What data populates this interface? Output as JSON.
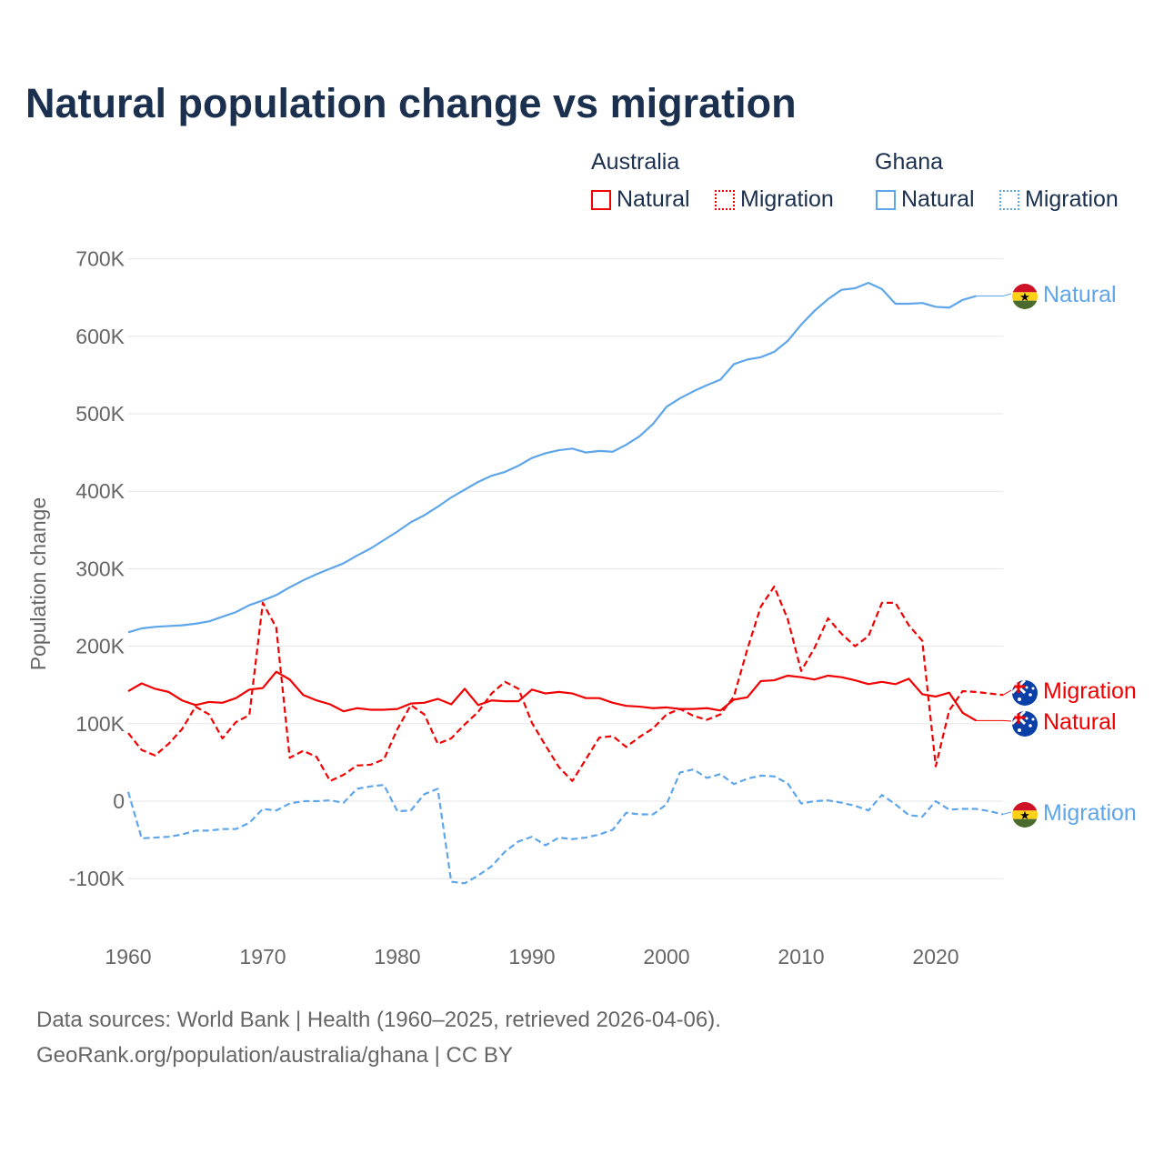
{
  "title": "Natural population change vs migration",
  "legend": {
    "groups": [
      {
        "name": "Australia",
        "items": [
          {
            "label": "Natural",
            "style": "solid"
          },
          {
            "label": "Migration",
            "style": "dotted"
          }
        ]
      },
      {
        "name": "Ghana",
        "items": [
          {
            "label": "Natural",
            "style": "solid"
          },
          {
            "label": "Migration",
            "style": "dotted"
          }
        ]
      }
    ]
  },
  "colors": {
    "australia": "#f00000",
    "ghana": "#5ea5ea"
  },
  "footer": {
    "line1": "Data sources: World Bank | Health (1960–2025, retrieved 2026-04-06).",
    "line2": "GeoRank.org/population/australia/ghana | CC BY"
  },
  "chart_data": {
    "type": "line",
    "title": "Natural population change vs migration",
    "xlabel": "",
    "ylabel": "Population change",
    "xlim": [
      1960,
      2025
    ],
    "ylim": [
      -100000,
      700000
    ],
    "x_ticks": [
      "1960",
      "1970",
      "1980",
      "1990",
      "2000",
      "2010",
      "2020"
    ],
    "y_ticks": [
      {
        "value": 700000,
        "label": "700K"
      },
      {
        "value": 600000,
        "label": "600K"
      },
      {
        "value": 500000,
        "label": "500K"
      },
      {
        "value": 400000,
        "label": "400K"
      },
      {
        "value": 300000,
        "label": "300K"
      },
      {
        "value": 200000,
        "label": "200K"
      },
      {
        "value": 100000,
        "label": "100K"
      },
      {
        "value": 0,
        "label": "0"
      },
      {
        "value": -100000,
        "label": "-100K"
      }
    ],
    "grid": true,
    "legend_position": "top-right",
    "start_year": 1960,
    "series": [
      {
        "name": "Ghana Natural",
        "country": "ghana",
        "dash": false,
        "end_label": "Natural",
        "flag": "ghana",
        "values_k": [
          218,
          223,
          225,
          226,
          227,
          229,
          232,
          238,
          244,
          253,
          259,
          266,
          276,
          285,
          293,
          300,
          307,
          317,
          326,
          337,
          348,
          360,
          369,
          380,
          392,
          402,
          412,
          420,
          425,
          433,
          443,
          449,
          453,
          455,
          450,
          452,
          451,
          460,
          471,
          487,
          509,
          520,
          529,
          537,
          544,
          564,
          570,
          573,
          580,
          594,
          615,
          633,
          648,
          660,
          662,
          669,
          661,
          642,
          642,
          643,
          638,
          637,
          647,
          652
        ]
      },
      {
        "name": "Ghana Migration",
        "country": "ghana",
        "dash": true,
        "end_label": "Migration",
        "flag": "ghana",
        "values_k": [
          12,
          -48,
          -47,
          -46,
          -43,
          -38,
          -38,
          -36,
          -36,
          -28,
          -10,
          -12,
          -3,
          0,
          0,
          1,
          -2,
          16,
          19,
          21,
          -13,
          -12,
          9,
          16,
          -104,
          -106,
          -96,
          -84,
          -65,
          -52,
          -46,
          -57,
          -47,
          -49,
          -47,
          -43,
          -37,
          -15,
          -17,
          -17,
          -4,
          37,
          41,
          30,
          35,
          22,
          29,
          33,
          32,
          23,
          -3,
          0,
          1,
          -2,
          -6,
          -12,
          8,
          -4,
          -18,
          -20,
          0,
          -11,
          -10,
          -10,
          -13,
          -17
        ]
      },
      {
        "name": "Australia Natural",
        "country": "australia",
        "dash": false,
        "end_label": "Natural",
        "flag": "australia",
        "values_k": [
          142,
          152,
          145,
          141,
          130,
          124,
          128,
          127,
          133,
          144,
          146,
          167,
          157,
          137,
          130,
          125,
          116,
          120,
          118,
          118,
          119,
          126,
          127,
          132,
          125,
          145,
          124,
          130,
          129,
          129,
          144,
          139,
          141,
          139,
          133,
          133,
          127,
          123,
          122,
          120,
          121,
          119,
          119,
          120,
          117,
          131,
          134,
          155,
          156,
          162,
          160,
          157,
          162,
          160,
          156,
          151,
          154,
          151,
          158,
          138,
          135,
          140,
          114,
          104
        ]
      },
      {
        "name": "Australia Migration",
        "country": "australia",
        "dash": true,
        "end_label": "Migration",
        "flag": "australia",
        "values_k": [
          88,
          66,
          59,
          74,
          93,
          122,
          112,
          81,
          102,
          111,
          256,
          224,
          56,
          65,
          57,
          26,
          34,
          46,
          47,
          54,
          93,
          124,
          112,
          74,
          81,
          99,
          115,
          139,
          154,
          145,
          101,
          72,
          44,
          26,
          54,
          82,
          84,
          70,
          83,
          94,
          112,
          119,
          110,
          105,
          112,
          135,
          196,
          251,
          277,
          235,
          168,
          198,
          236,
          216,
          200,
          213,
          256,
          256,
          227,
          207,
          45,
          117,
          142,
          141,
          139,
          137
        ]
      }
    ]
  }
}
